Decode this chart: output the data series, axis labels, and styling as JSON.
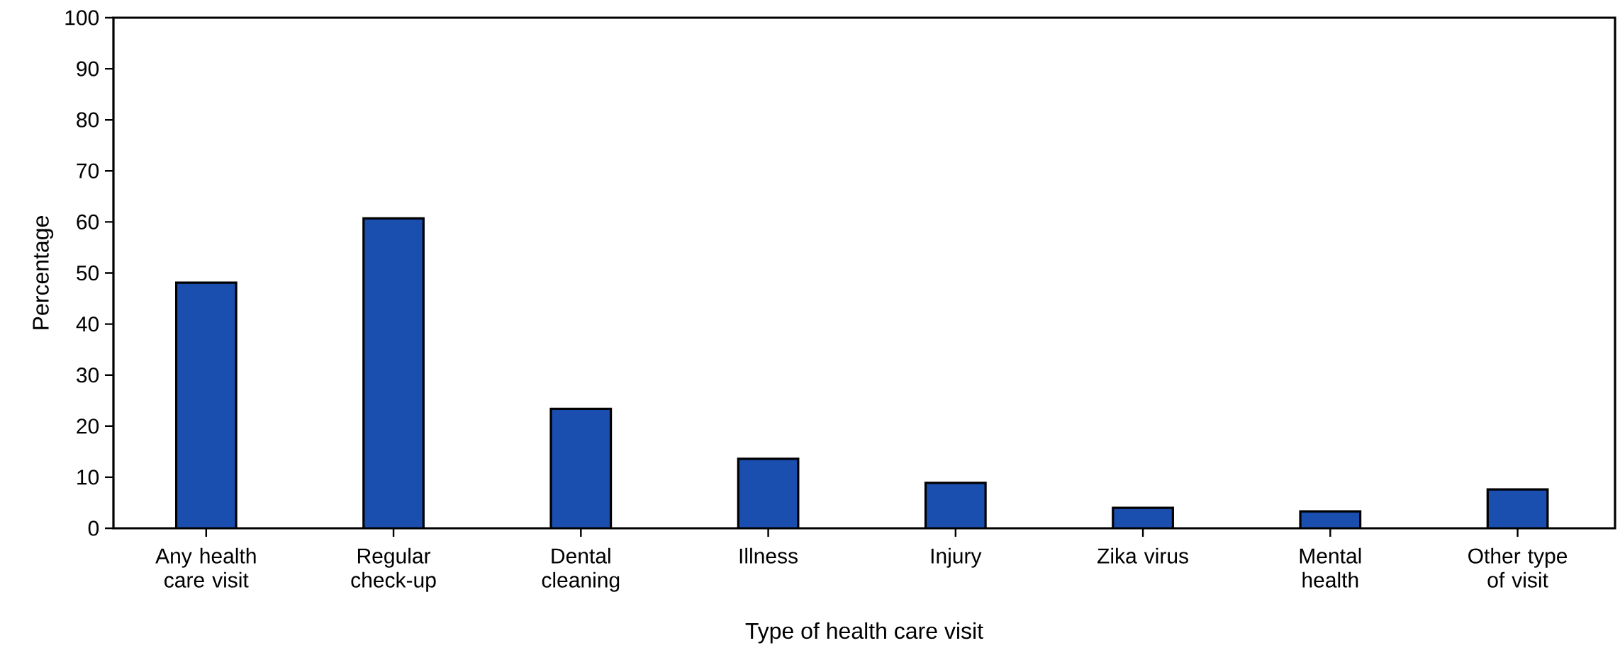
{
  "chart_data": {
    "type": "bar",
    "xlabel": "Type of health care visit",
    "ylabel": "Percentage",
    "categories": [
      "Any health care visit",
      "Regular check-up",
      "Dental cleaning",
      "Illness",
      "Injury",
      "Zika virus",
      "Mental health",
      "Other type of visit"
    ],
    "values": [
      48.1,
      60.7,
      23.4,
      13.6,
      8.9,
      4.0,
      3.3,
      7.6
    ],
    "color": "#1a4fb0",
    "ylim": [
      0,
      100
    ],
    "yticks": [
      0,
      10,
      20,
      30,
      40,
      50,
      60,
      70,
      80,
      90,
      100
    ]
  }
}
